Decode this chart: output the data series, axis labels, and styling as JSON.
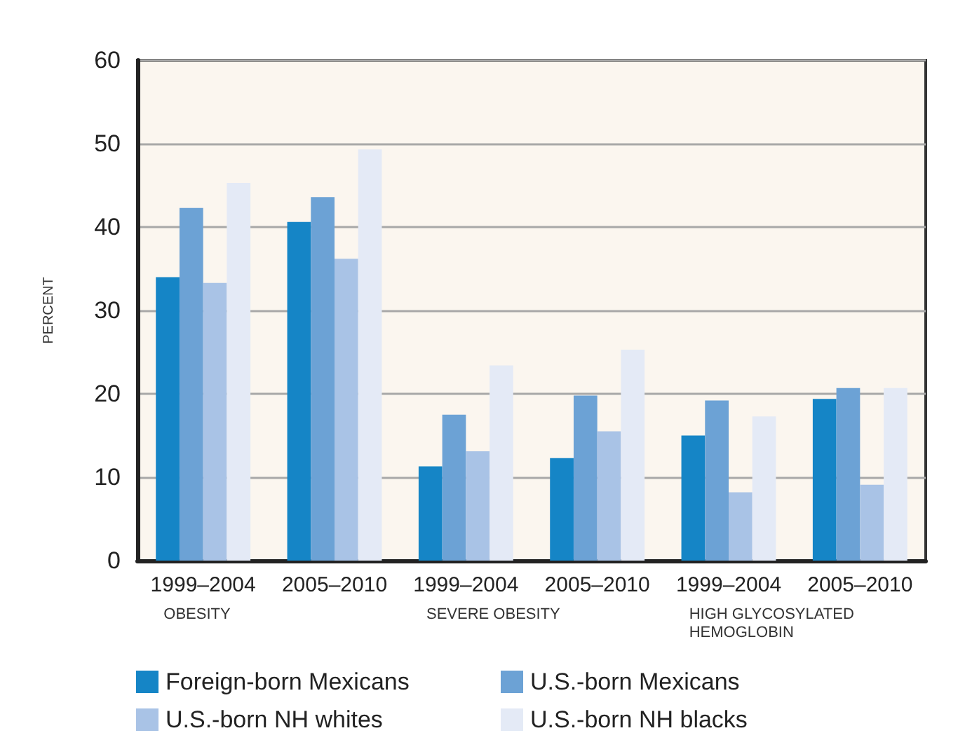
{
  "chart_data": {
    "type": "bar",
    "ylabel": "PERCENT",
    "categories": [
      "1999–2004",
      "2005–2010",
      "1999–2004",
      "2005–2010",
      "1999–2004",
      "2005–2010"
    ],
    "annotations": [
      "OBESITY",
      "SEVERE OBESITY",
      "HIGH GLYCOSYLATED HEMOGLOBIN"
    ],
    "series": [
      {
        "name": "Foreign-born Mexicans",
        "color": "#1585c6",
        "values": [
          34.0,
          40.6,
          11.3,
          12.3,
          15.0,
          19.4
        ]
      },
      {
        "name": "U.S.-born Mexicans",
        "color": "#6ca2d5",
        "values": [
          42.3,
          43.6,
          17.5,
          19.8,
          19.2,
          20.7
        ]
      },
      {
        "name": "U.S.-born NH whites",
        "color": "#a9c3e6",
        "values": [
          33.3,
          36.2,
          13.1,
          15.5,
          8.2,
          9.1
        ]
      },
      {
        "name": "U.S.-born NH blacks",
        "color": "#e4eaf6",
        "values": [
          45.3,
          49.3,
          23.4,
          25.3,
          17.3,
          20.7
        ]
      }
    ],
    "ylim": [
      0,
      60
    ],
    "yticks": [
      0,
      10,
      20,
      30,
      40,
      50,
      60
    ],
    "grid": "y",
    "legend": "bottom"
  }
}
